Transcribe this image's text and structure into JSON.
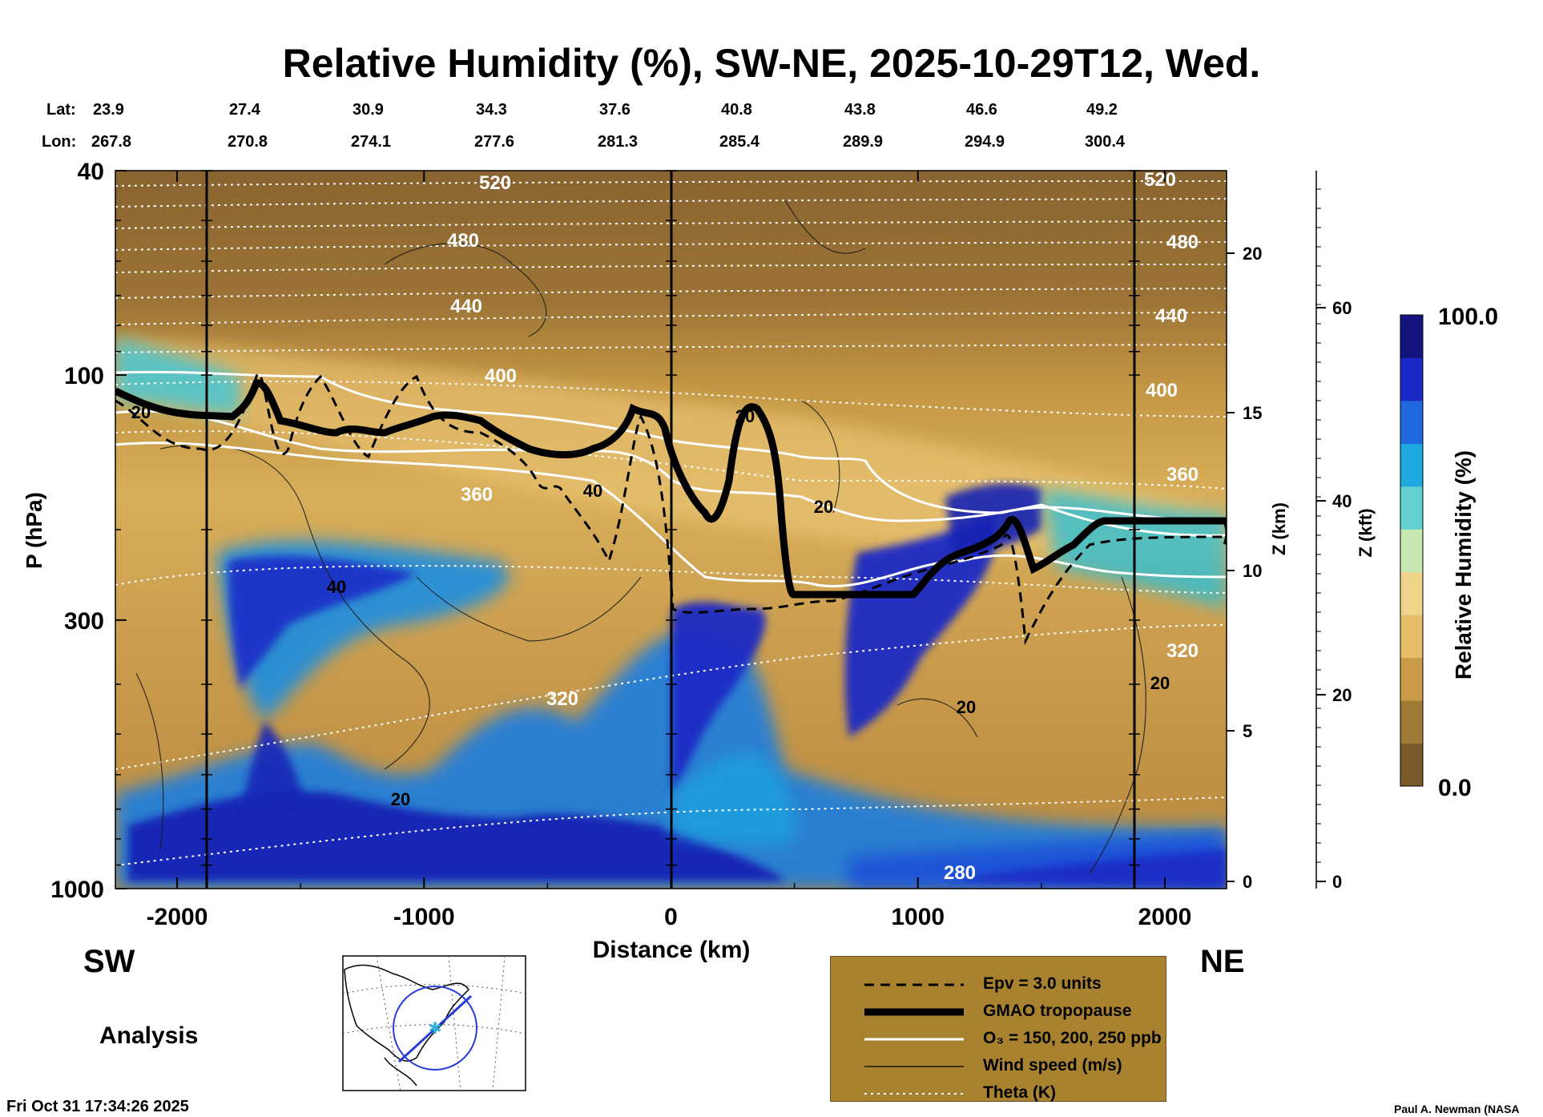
{
  "header": {
    "title": "Relative Humidity (%), SW-NE, 2025-10-29T12, Wed.",
    "lat_label": "Lat:",
    "lon_label": "Lon:",
    "lats": [
      "23.9",
      "27.4",
      "30.9",
      "34.3",
      "37.6",
      "40.8",
      "43.8",
      "46.6",
      "49.2"
    ],
    "lons": [
      "267.8",
      "270.8",
      "274.1",
      "277.6",
      "281.3",
      "285.4",
      "289.9",
      "294.9",
      "300.4"
    ]
  },
  "chart_data": {
    "type": "heatmap",
    "title": "Relative Humidity (%), SW-NE, 2025-10-29T12, Wed.",
    "xlabel": "Distance (km)",
    "ylabel": "P (hPa)",
    "xlim": [
      -2250,
      2250
    ],
    "ylim_hpa": [
      1000,
      40
    ],
    "y_scale": "log",
    "x_ticks": [
      "-2000",
      "-1000",
      "0",
      "1000",
      "2000"
    ],
    "y_ticks": [
      "40",
      "100",
      "300",
      "1000"
    ],
    "z_km_label": "Z (km)",
    "z_km_ticks": [
      "0",
      "5",
      "10",
      "15",
      "20"
    ],
    "z_kft_label": "Z (kft)",
    "z_kft_ticks": [
      "0",
      "20",
      "40",
      "60"
    ],
    "colorbar": {
      "label": "Relative Humidity (%)",
      "min_label": "0.0",
      "max_label": "100.0",
      "colors": [
        "#7a5a2a",
        "#a07a36",
        "#c99a48",
        "#e6bc68",
        "#f0d48c",
        "#c8e6b0",
        "#62d0d0",
        "#1ea8e0",
        "#1f68e0",
        "#1a28c8",
        "#14147e"
      ]
    },
    "theta_labels": [
      "520",
      "480",
      "440",
      "400",
      "360",
      "320",
      "280",
      "520",
      "480",
      "440",
      "400",
      "360",
      "320"
    ],
    "wind_labels": [
      "20",
      "40",
      "20",
      "20",
      "20",
      "40",
      "20",
      "20"
    ],
    "legend": [
      {
        "label": "Epv = 3.0 units",
        "style": "dashed-black"
      },
      {
        "label": "GMAO tropopause",
        "style": "thick-black"
      },
      {
        "label": "O₃ = 150, 200, 250 ppb",
        "style": "white"
      },
      {
        "label": "Wind speed (m/s)",
        "style": "thin-black"
      },
      {
        "label": "Theta (K)",
        "style": "dotted-white"
      }
    ]
  },
  "annotations": {
    "sw": "SW",
    "ne": "NE",
    "analysis": "Analysis",
    "timestamp": "Fri Oct 31 17:34:26 2025",
    "credit": "Paul A. Newman (NASA"
  }
}
